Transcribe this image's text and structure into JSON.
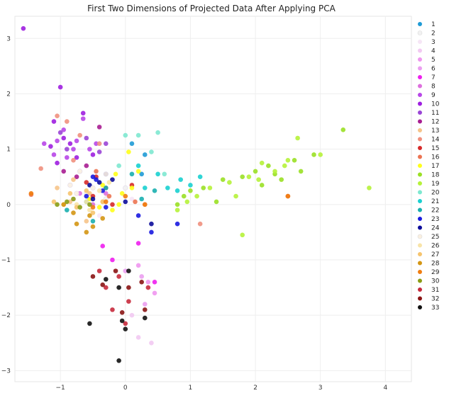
{
  "chart_data": {
    "type": "scatter",
    "title": "First Two Dimensions of Projected Data After Applying PCA",
    "xlabel": "",
    "ylabel": "",
    "xlim": [
      -1.7,
      4.4
    ],
    "ylim": [
      -3.2,
      3.4
    ],
    "xticks": [
      -1,
      0,
      1,
      2,
      3,
      4
    ],
    "yticks": [
      -3,
      -2,
      -1,
      0,
      1,
      2,
      3
    ],
    "grid": true,
    "legend_position": "right",
    "series": [
      {
        "name": "1",
        "color": "#1f9bd6",
        "points": [
          [
            0.1,
            1.1
          ],
          [
            0.25,
            0.55
          ],
          [
            0.3,
            0.9
          ]
        ]
      },
      {
        "name": "2",
        "color": "#f2f2f2",
        "points": [
          [
            -0.6,
            0.2
          ],
          [
            -0.3,
            0.1
          ],
          [
            0.0,
            0.3
          ]
        ]
      },
      {
        "name": "3",
        "color": "#f6e6f6",
        "points": [
          [
            -0.8,
            0.1
          ],
          [
            -0.4,
            -0.2
          ],
          [
            0.1,
            0.1
          ]
        ]
      },
      {
        "name": "4",
        "color": "#f2c9f2",
        "points": [
          [
            0.2,
            -2.4
          ],
          [
            0.4,
            -2.5
          ],
          [
            0.1,
            -2.0
          ]
        ]
      },
      {
        "name": "5",
        "color": "#ef96ef",
        "points": [
          [
            0.35,
            -1.4
          ],
          [
            0.2,
            -1.1
          ],
          [
            0.45,
            -1.6
          ]
        ]
      },
      {
        "name": "6",
        "color": "#eb9ef0",
        "points": [
          [
            0.3,
            -1.8
          ],
          [
            0.0,
            -1.2
          ],
          [
            0.25,
            -1.3
          ]
        ]
      },
      {
        "name": "7",
        "color": "#ee1fee",
        "points": [
          [
            -0.35,
            -0.75
          ],
          [
            -0.2,
            -1.0
          ],
          [
            0.45,
            -1.4
          ],
          [
            0.2,
            -0.7
          ]
        ]
      },
      {
        "name": "8",
        "color": "#de70de",
        "points": [
          [
            -0.7,
            0.2
          ],
          [
            -0.5,
            0.0
          ],
          [
            -0.3,
            0.2
          ]
        ]
      },
      {
        "name": "9",
        "color": "#b847e8",
        "points": [
          [
            -1.05,
            1.15
          ],
          [
            -0.95,
            1.35
          ],
          [
            -0.75,
            1.15
          ],
          [
            -0.65,
            1.55
          ],
          [
            -0.9,
            0.85
          ],
          [
            -0.55,
            1.0
          ],
          [
            -1.25,
            1.1
          ],
          [
            -0.45,
            1.1
          ],
          [
            -1.1,
            0.9
          ],
          [
            -0.8,
            1.0
          ]
        ]
      },
      {
        "name": "10",
        "color": "#9e1fe0",
        "points": [
          [
            -1.57,
            3.18
          ],
          [
            -1.0,
            2.12
          ],
          [
            -1.1,
            1.5
          ],
          [
            -0.65,
            1.65
          ],
          [
            -0.95,
            1.2
          ],
          [
            -1.15,
            1.05
          ],
          [
            -0.85,
            1.1
          ],
          [
            -0.5,
            0.9
          ],
          [
            -1.05,
            0.75
          ],
          [
            -0.75,
            0.85
          ]
        ]
      },
      {
        "name": "11",
        "color": "#9a45d6",
        "points": [
          [
            -1.0,
            1.3
          ],
          [
            -0.6,
            1.2
          ],
          [
            -0.4,
            0.95
          ],
          [
            -0.9,
            1.0
          ],
          [
            -0.3,
            1.1
          ]
        ]
      },
      {
        "name": "12",
        "color": "#a81e92",
        "points": [
          [
            -0.95,
            0.6
          ],
          [
            -0.75,
            0.5
          ],
          [
            -0.4,
            1.4
          ],
          [
            -0.6,
            0.7
          ]
        ]
      },
      {
        "name": "13",
        "color": "#f6c48a",
        "points": [
          [
            -1.05,
            0.3
          ],
          [
            -0.85,
            0.05
          ],
          [
            -0.55,
            0.2
          ],
          [
            -0.35,
            0.05
          ],
          [
            -0.6,
            -0.3
          ],
          [
            -0.8,
            0.45
          ]
        ]
      },
      {
        "name": "14",
        "color": "#f0907e",
        "points": [
          [
            -1.05,
            1.6
          ],
          [
            -0.9,
            1.5
          ],
          [
            -0.7,
            1.25
          ],
          [
            -0.8,
            0.8
          ],
          [
            -1.3,
            0.65
          ],
          [
            -0.4,
            1.1
          ],
          [
            1.15,
            -0.35
          ]
        ]
      },
      {
        "name": "15",
        "color": "#d62a2a",
        "points": [
          [
            -0.45,
            0.5
          ],
          [
            -0.3,
            0.3
          ],
          [
            -0.2,
            0.0
          ],
          [
            -0.5,
            0.15
          ],
          [
            0.1,
            0.35
          ],
          [
            -0.6,
            0.4
          ]
        ]
      },
      {
        "name": "16",
        "color": "#ec7452",
        "points": [
          [
            -1.45,
            0.18
          ],
          [
            -0.25,
            0.15
          ],
          [
            0.15,
            0.05
          ],
          [
            0.3,
            0.0
          ],
          [
            2.5,
            0.15
          ],
          [
            -0.45,
            0.6
          ]
        ]
      },
      {
        "name": "17",
        "color": "#ffff1a",
        "points": [
          [
            -0.55,
            0.1
          ],
          [
            -0.35,
            0.35
          ],
          [
            -0.15,
            0.55
          ],
          [
            -0.05,
            0.2
          ],
          [
            0.1,
            0.3
          ],
          [
            -0.2,
            -0.1
          ],
          [
            0.05,
            0.95
          ],
          [
            -0.4,
            -0.05
          ],
          [
            0.2,
            0.6
          ],
          [
            -0.1,
            0.0
          ]
        ]
      },
      {
        "name": "18",
        "color": "#9ae025",
        "points": [
          [
            0.8,
            0.0
          ],
          [
            1.2,
            0.3
          ],
          [
            1.5,
            0.45
          ],
          [
            1.8,
            0.5
          ],
          [
            2.0,
            0.6
          ],
          [
            2.2,
            0.7
          ],
          [
            2.4,
            0.45
          ],
          [
            2.6,
            0.8
          ],
          [
            2.7,
            0.6
          ],
          [
            3.35,
            1.35
          ],
          [
            2.9,
            0.9
          ],
          [
            1.0,
            0.25
          ],
          [
            0.9,
            0.15
          ],
          [
            1.4,
            0.05
          ],
          [
            2.1,
            0.35
          ],
          [
            2.3,
            0.55
          ]
        ]
      },
      {
        "name": "19",
        "color": "#b6f23a",
        "points": [
          [
            0.8,
            -0.1
          ],
          [
            1.1,
            0.15
          ],
          [
            1.6,
            0.4
          ],
          [
            1.9,
            0.5
          ],
          [
            2.05,
            0.45
          ],
          [
            2.3,
            0.6
          ],
          [
            2.5,
            0.8
          ],
          [
            2.65,
            1.2
          ],
          [
            3.0,
            0.9
          ],
          [
            3.75,
            0.3
          ],
          [
            1.7,
            0.15
          ],
          [
            2.1,
            0.75
          ],
          [
            1.3,
            0.3
          ],
          [
            0.95,
            0.05
          ],
          [
            1.8,
            -0.55
          ],
          [
            2.45,
            0.7
          ]
        ]
      },
      {
        "name": "20",
        "color": "#7ee8d0",
        "points": [
          [
            0.0,
            1.25
          ],
          [
            0.2,
            1.25
          ],
          [
            0.5,
            1.3
          ],
          [
            0.4,
            0.95
          ],
          [
            -0.1,
            0.7
          ],
          [
            0.6,
            0.55
          ]
        ]
      },
      {
        "name": "21",
        "color": "#1ad0d0",
        "points": [
          [
            0.2,
            0.7
          ],
          [
            0.5,
            0.55
          ],
          [
            0.65,
            0.3
          ],
          [
            0.85,
            0.45
          ],
          [
            1.15,
            0.5
          ],
          [
            1.0,
            0.35
          ],
          [
            0.3,
            0.3
          ],
          [
            0.8,
            0.25
          ]
        ]
      },
      {
        "name": "22",
        "color": "#1aafaf",
        "points": [
          [
            -0.9,
            -0.1
          ],
          [
            -0.6,
            0.05
          ],
          [
            -0.3,
            0.3
          ],
          [
            0.25,
            0.1
          ],
          [
            0.45,
            0.25
          ],
          [
            -0.5,
            -0.3
          ],
          [
            0.1,
            0.55
          ]
        ]
      },
      {
        "name": "23",
        "color": "#1a1ae0",
        "points": [
          [
            -0.5,
            0.5
          ],
          [
            -0.35,
            0.25
          ],
          [
            -0.45,
            0.45
          ],
          [
            0.2,
            -0.2
          ],
          [
            0.4,
            -0.5
          ],
          [
            0.8,
            -0.35
          ],
          [
            -0.6,
            0.15
          ],
          [
            -0.3,
            -0.05
          ]
        ]
      },
      {
        "name": "24",
        "color": "#0c0c9a",
        "points": [
          [
            -0.55,
            0.35
          ],
          [
            -0.4,
            0.4
          ],
          [
            -0.3,
            0.55
          ],
          [
            -0.5,
            0.1
          ],
          [
            0.0,
            0.05
          ],
          [
            0.4,
            -0.35
          ],
          [
            -0.2,
            0.45
          ]
        ]
      },
      {
        "name": "25",
        "color": "#faf0e0",
        "points": [
          [
            -0.85,
            0.35
          ],
          [
            -0.7,
            0.6
          ],
          [
            -0.5,
            0.3
          ],
          [
            -0.3,
            0.55
          ],
          [
            -0.75,
            0.2
          ]
        ]
      },
      {
        "name": "26",
        "color": "#f8e4a8",
        "points": [
          [
            -0.75,
            0.0
          ],
          [
            -0.55,
            -0.1
          ],
          [
            -0.4,
            0.25
          ],
          [
            -0.25,
            0.4
          ],
          [
            -0.6,
            0.05
          ]
        ]
      },
      {
        "name": "27",
        "color": "#f6c46e",
        "points": [
          [
            -1.1,
            0.05
          ],
          [
            -0.95,
            0.0
          ],
          [
            -0.75,
            -0.05
          ],
          [
            -0.5,
            -0.15
          ],
          [
            -0.35,
            0.05
          ],
          [
            -0.85,
            0.2
          ],
          [
            -0.6,
            0.25
          ]
        ]
      },
      {
        "name": "28",
        "color": "#d49614",
        "points": [
          [
            -0.95,
            0.0
          ],
          [
            -0.75,
            -0.35
          ],
          [
            -0.5,
            -0.4
          ],
          [
            -0.35,
            -0.25
          ],
          [
            -0.55,
            -0.2
          ],
          [
            -0.8,
            -0.15
          ],
          [
            -0.6,
            -0.5
          ]
        ]
      },
      {
        "name": "29",
        "color": "#f07d10",
        "points": [
          [
            -1.45,
            0.2
          ],
          [
            -0.3,
            0.05
          ],
          [
            0.0,
            0.15
          ],
          [
            0.3,
            0.0
          ],
          [
            2.5,
            0.15
          ],
          [
            -0.5,
            -0.05
          ]
        ]
      },
      {
        "name": "30",
        "color": "#8a9c14",
        "points": [
          [
            -1.05,
            0.0
          ],
          [
            -0.9,
            0.05
          ],
          [
            -0.7,
            -0.05
          ],
          [
            -0.55,
            0.0
          ],
          [
            -0.8,
            0.1
          ]
        ]
      },
      {
        "name": "31",
        "color": "#c62a3c",
        "points": [
          [
            -0.4,
            -1.2
          ],
          [
            -0.3,
            -1.5
          ],
          [
            -0.1,
            -1.3
          ],
          [
            0.05,
            -1.75
          ],
          [
            0.35,
            -1.5
          ],
          [
            -0.2,
            -1.9
          ],
          [
            0.0,
            -2.15
          ]
        ]
      },
      {
        "name": "32",
        "color": "#8a1414",
        "points": [
          [
            -0.5,
            -1.3
          ],
          [
            -0.35,
            -1.45
          ],
          [
            -0.15,
            -1.2
          ],
          [
            0.05,
            -1.5
          ],
          [
            0.25,
            -1.4
          ],
          [
            -0.05,
            -1.95
          ],
          [
            0.3,
            -1.9
          ]
        ]
      },
      {
        "name": "33",
        "color": "#111111",
        "points": [
          [
            -0.55,
            -2.15
          ],
          [
            -0.1,
            -2.82
          ],
          [
            -0.05,
            -2.1
          ],
          [
            0.0,
            -2.25
          ],
          [
            -0.1,
            -1.5
          ],
          [
            0.3,
            -2.05
          ],
          [
            -0.3,
            -1.35
          ],
          [
            0.05,
            -1.2
          ]
        ]
      }
    ]
  }
}
